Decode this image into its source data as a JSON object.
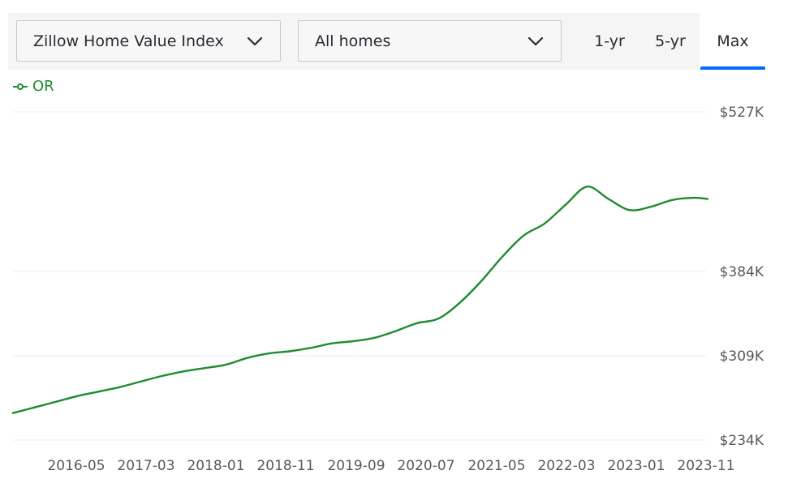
{
  "controls": {
    "metric_dropdown": {
      "label": "Zillow Home Value Index",
      "icon": "chevron-down-icon"
    },
    "home_type_dropdown": {
      "label": "All homes",
      "icon": "chevron-down-icon"
    },
    "range_tabs": [
      {
        "label": "1-yr",
        "active": false
      },
      {
        "label": "5-yr",
        "active": false
      },
      {
        "label": "Max",
        "active": true
      }
    ],
    "accent_color": "#006aff"
  },
  "legend": {
    "label": "OR",
    "color": "#1f8a2e"
  },
  "chart_data": {
    "type": "line",
    "title": "",
    "xlabel": "",
    "ylabel": "",
    "x_ticks": [
      "2016-05",
      "2017-03",
      "2018-01",
      "2018-11",
      "2019-09",
      "2020-07",
      "2021-05",
      "2022-03",
      "2023-01",
      "2023-11"
    ],
    "y_ticks": [
      234,
      309,
      384,
      527
    ],
    "y_tick_labels": [
      "$234K",
      "$309K",
      "$384K",
      "$527K"
    ],
    "ylim": [
      234,
      527
    ],
    "xlim": [
      "2015-09",
      "2023-11"
    ],
    "grid": true,
    "legend_position": "top-left",
    "series": [
      {
        "name": "OR",
        "color": "#1f8a2e",
        "points": [
          [
            "2015-09",
            258
          ],
          [
            "2015-12",
            263
          ],
          [
            "2016-03",
            268
          ],
          [
            "2016-06",
            273
          ],
          [
            "2016-09",
            277
          ],
          [
            "2016-12",
            281
          ],
          [
            "2017-03",
            286
          ],
          [
            "2017-06",
            291
          ],
          [
            "2017-09",
            295
          ],
          [
            "2017-12",
            298
          ],
          [
            "2018-03",
            301
          ],
          [
            "2018-06",
            307
          ],
          [
            "2018-09",
            311
          ],
          [
            "2018-12",
            313
          ],
          [
            "2019-03",
            316
          ],
          [
            "2019-06",
            320
          ],
          [
            "2019-09",
            322
          ],
          [
            "2019-12",
            325
          ],
          [
            "2020-03",
            331
          ],
          [
            "2020-06",
            338
          ],
          [
            "2020-09",
            342
          ],
          [
            "2020-12",
            356
          ],
          [
            "2021-03",
            375
          ],
          [
            "2021-06",
            397
          ],
          [
            "2021-09",
            416
          ],
          [
            "2021-12",
            427
          ],
          [
            "2022-03",
            444
          ],
          [
            "2022-06",
            460
          ],
          [
            "2022-09",
            449
          ],
          [
            "2022-12",
            439
          ],
          [
            "2023-03",
            442
          ],
          [
            "2023-06",
            448
          ],
          [
            "2023-09",
            450
          ],
          [
            "2023-11",
            449
          ]
        ]
      }
    ]
  }
}
